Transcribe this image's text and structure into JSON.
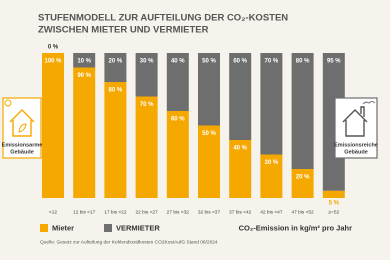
{
  "chart_data": {
    "type": "stacked-bar",
    "title": [
      "STUFENMODELL ZUR AUFTEILUNG DER CO₂-KOSTEN",
      "ZWISCHEN MIETER UND VERMIETER"
    ],
    "categories": [
      "<12",
      "12 bis <17",
      "17 bis <22",
      "22 bis <27",
      "27 bis <32",
      "32 bis <37",
      "37 bis <42",
      "42 bis <47",
      "47 bis <52",
      "≥=52"
    ],
    "series": [
      {
        "name": "Mieter",
        "color": "#f5a800",
        "values": [
          100,
          90,
          80,
          70,
          60,
          50,
          40,
          30,
          20,
          5
        ],
        "value_labels": [
          "100 %",
          "90 %",
          "80 %",
          "70 %",
          "60 %",
          "50 %",
          "40 %",
          "30 %",
          "20 %",
          "5 %"
        ]
      },
      {
        "name": "VERMIETER",
        "color": "#6e6e6e",
        "values": [
          0,
          10,
          20,
          30,
          40,
          50,
          60,
          70,
          80,
          95
        ],
        "value_labels": [
          "0 %",
          "10 %",
          "20 %",
          "30 %",
          "40 %",
          "50 %",
          "60 %",
          "70 %",
          "80 %",
          "95 %"
        ]
      }
    ],
    "ylim": [
      0,
      100
    ],
    "x_label": "CO₂-Emission in kg/m² pro Jahr",
    "annotations": [
      [
        "Emissionsarme",
        "Gebäude"
      ],
      [
        "Emissionsreiche",
        "Gebäude"
      ]
    ],
    "source": "Quelle: Gesetz zur Aufteilung der Kohlendioxidkosten CO2KostAufG  Stand 08/2024"
  }
}
